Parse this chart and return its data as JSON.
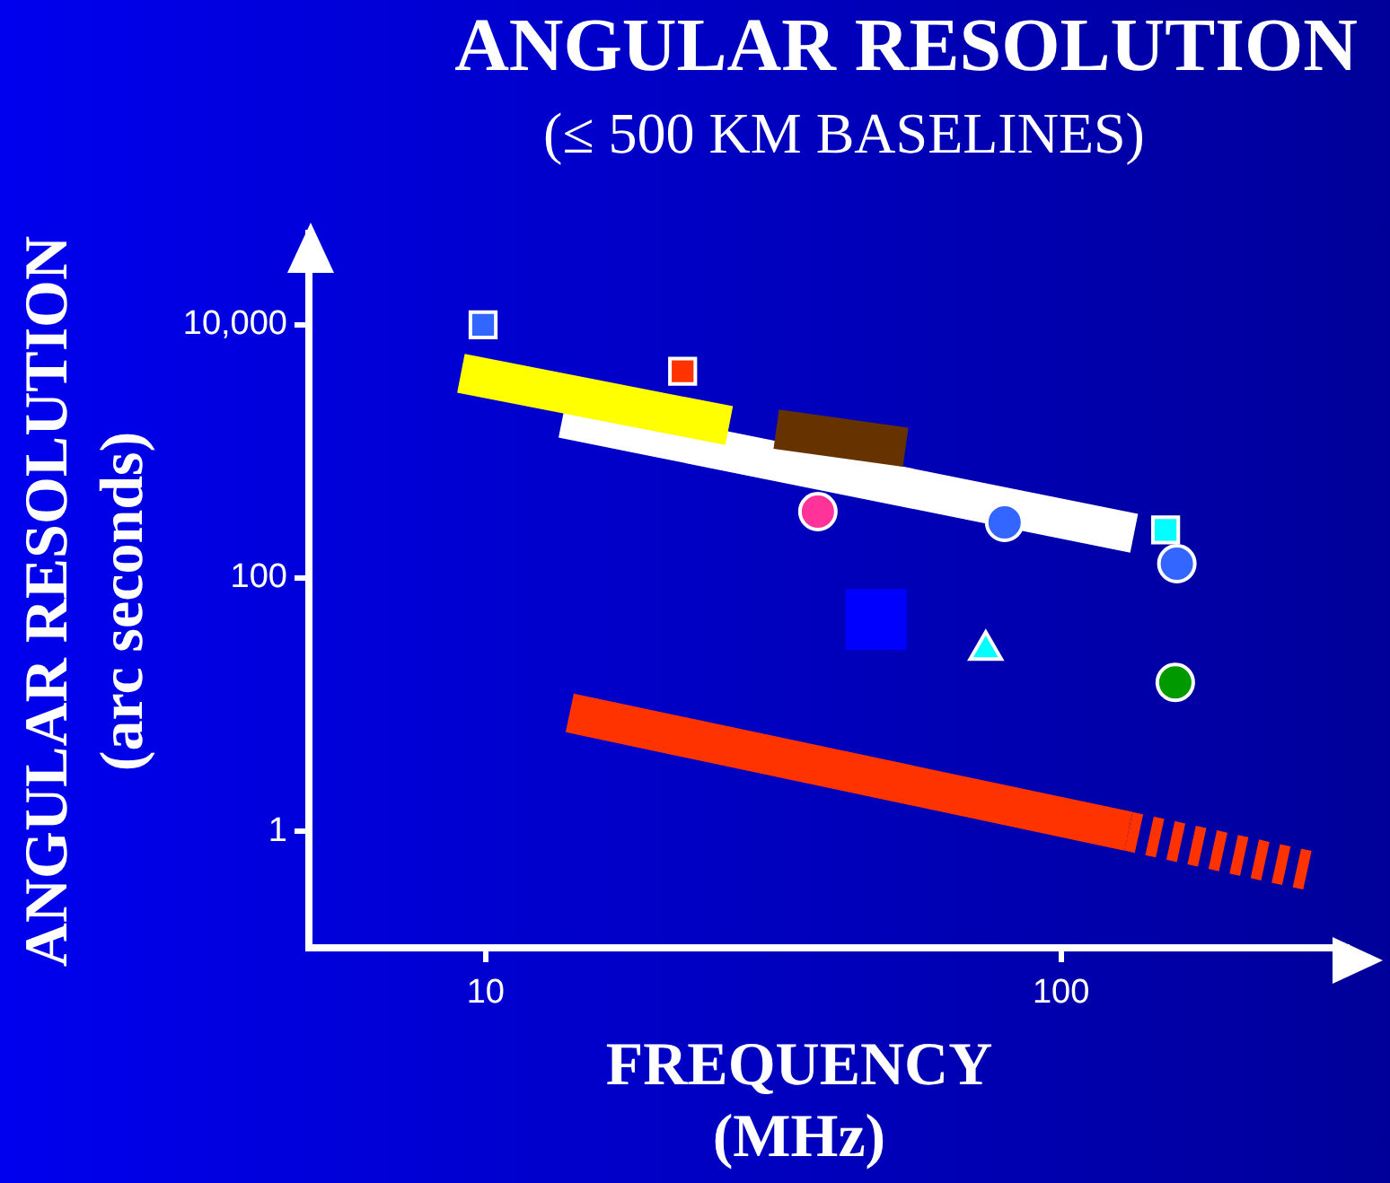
{
  "chart_data": {
    "type": "line",
    "title": "ANGULAR RESOLUTION",
    "subtitle": "(≤ 500 KM BASELINES)",
    "xlabel": "FREQUENCY (MHz)",
    "ylabel": "ANGULAR RESOLUTION (arc seconds)",
    "log": "xy",
    "grid": false,
    "xlim": [
      4.93,
      314
    ],
    "ylim": [
      0.12,
      52800
    ],
    "xticks": [
      10,
      100
    ],
    "yticks": [
      1,
      100,
      {
        "value": 10000,
        "label": "10,000"
      }
    ],
    "series": [
      {
        "type": "line",
        "color": "#ffffff",
        "x": [
          13.6,
          134
        ],
        "values": [
          1830,
          226
        ]
      },
      {
        "type": "line",
        "color": "#ffff00",
        "x": [
          9.06,
          26.5
        ],
        "values": [
          4140,
          1600
        ]
      },
      {
        "type": "line",
        "color": "#663300",
        "x": [
          32,
          53.7
        ],
        "values": [
          1500,
          1080
        ]
      },
      {
        "type": "line",
        "color": "#ff3300",
        "x": [
          14,
          131
        ],
        "values": [
          8.6,
          1
        ]
      },
      {
        "type": "line",
        "color": "#ff3300",
        "line_style": "dotted",
        "x": [
          131,
          269
        ],
        "values": [
          1,
          0.49
        ]
      },
      {
        "type": "bubble",
        "color": "#0000ff",
        "marker": "square",
        "x": [
          47.7
        ],
        "values": [
          47
        ],
        "sizes": [
          1
        ]
      },
      {
        "type": "scatter",
        "color": "#3366ff",
        "marker": "square",
        "x": [
          9.9
        ],
        "values": [
          10000
        ]
      },
      {
        "type": "scatter",
        "color": "#ff3300",
        "marker": "square",
        "x": [
          22
        ],
        "values": [
          4300
        ]
      },
      {
        "type": "scatter",
        "color": "#ff3399",
        "marker": "circle",
        "x": [
          37.8
        ],
        "values": [
          335
        ]
      },
      {
        "type": "scatter",
        "color": "#3366ff",
        "marker": "circle",
        "x": [
          79.8,
          159
        ],
        "values": [
          275,
          130
        ]
      },
      {
        "type": "scatter",
        "color": "#00ffff",
        "marker": "square",
        "x": [
          152
        ],
        "values": [
          240
        ]
      },
      {
        "type": "scatter",
        "color": "#00ffff",
        "marker": "triangle",
        "x": [
          74
        ],
        "values": [
          27
        ]
      },
      {
        "type": "scatter",
        "color": "#009900",
        "marker": "circle",
        "x": [
          158
        ],
        "values": [
          15
        ]
      }
    ]
  }
}
